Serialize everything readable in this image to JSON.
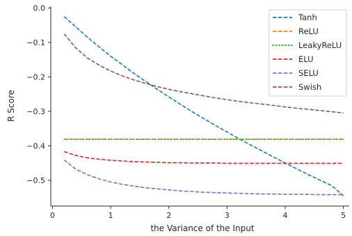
{
  "chart_data": {
    "type": "line",
    "xlabel": "the Variance of the Input",
    "ylabel": "R Score",
    "xlim": [
      -0.03,
      5.1
    ],
    "ylim": [
      -0.575,
      0.005
    ],
    "xticks": [
      0,
      1,
      2,
      3,
      4,
      5
    ],
    "xtick_labels": [
      "0",
      "1",
      "2",
      "3",
      "4",
      "5"
    ],
    "yticks": [
      0.0,
      -0.1,
      -0.2,
      -0.3,
      -0.4,
      -0.5
    ],
    "ytick_labels": [
      "0.0",
      "−0.1",
      "−0.2",
      "−0.3",
      "−0.4",
      "−0.5"
    ],
    "grid": false,
    "legend_position": "top-right",
    "x": [
      0.2,
      0.4,
      0.6,
      0.8,
      1.0,
      1.2,
      1.4,
      1.6,
      1.8,
      2.0,
      2.2,
      2.4,
      2.6,
      2.8,
      3.0,
      3.2,
      3.4,
      3.6,
      3.8,
      4.0,
      4.2,
      4.4,
      4.6,
      4.8,
      5.0
    ],
    "series": [
      {
        "name": "Tanh",
        "color": "#1f77b4",
        "dash": "dashed",
        "values": [
          -0.025,
          -0.055,
          -0.085,
          -0.113,
          -0.14,
          -0.165,
          -0.19,
          -0.213,
          -0.236,
          -0.258,
          -0.28,
          -0.301,
          -0.321,
          -0.341,
          -0.36,
          -0.379,
          -0.397,
          -0.415,
          -0.433,
          -0.45,
          -0.467,
          -0.484,
          -0.5,
          -0.516,
          -0.545
        ]
      },
      {
        "name": "ReLU",
        "color": "#ff7f0e",
        "dash": "dashed",
        "values": [
          -0.381,
          -0.381,
          -0.381,
          -0.381,
          -0.381,
          -0.381,
          -0.381,
          -0.381,
          -0.381,
          -0.381,
          -0.381,
          -0.381,
          -0.381,
          -0.381,
          -0.381,
          -0.381,
          -0.381,
          -0.381,
          -0.381,
          -0.381,
          -0.381,
          -0.381,
          -0.381,
          -0.381,
          -0.381
        ]
      },
      {
        "name": "LeakyReLU",
        "color": "#2ca02c",
        "dash": "dotted",
        "values": [
          -0.381,
          -0.381,
          -0.381,
          -0.381,
          -0.381,
          -0.381,
          -0.381,
          -0.381,
          -0.381,
          -0.381,
          -0.381,
          -0.381,
          -0.381,
          -0.381,
          -0.381,
          -0.381,
          -0.381,
          -0.381,
          -0.381,
          -0.381,
          -0.381,
          -0.381,
          -0.381,
          -0.381,
          -0.381
        ]
      },
      {
        "name": "ELU",
        "color": "#d62728",
        "dash": "dashed",
        "values": [
          -0.417,
          -0.428,
          -0.435,
          -0.439,
          -0.442,
          -0.444,
          -0.446,
          -0.447,
          -0.448,
          -0.449,
          -0.449,
          -0.45,
          -0.45,
          -0.45,
          -0.451,
          -0.451,
          -0.451,
          -0.451,
          -0.451,
          -0.451,
          -0.451,
          -0.451,
          -0.451,
          -0.451,
          -0.451
        ]
      },
      {
        "name": "SELU",
        "color": "#9467bd",
        "dash": "dashed",
        "values": [
          -0.441,
          -0.468,
          -0.484,
          -0.496,
          -0.505,
          -0.512,
          -0.517,
          -0.522,
          -0.525,
          -0.528,
          -0.531,
          -0.533,
          -0.535,
          -0.536,
          -0.537,
          -0.538,
          -0.539,
          -0.54,
          -0.54,
          -0.541,
          -0.541,
          -0.541,
          -0.542,
          -0.542,
          -0.542
        ]
      },
      {
        "name": "Swish",
        "color": "#8c564b",
        "dash": "dashed",
        "values": [
          -0.075,
          -0.116,
          -0.145,
          -0.166,
          -0.183,
          -0.197,
          -0.209,
          -0.219,
          -0.228,
          -0.236,
          -0.243,
          -0.249,
          -0.255,
          -0.261,
          -0.266,
          -0.271,
          -0.275,
          -0.279,
          -0.283,
          -0.287,
          -0.291,
          -0.294,
          -0.298,
          -0.301,
          -0.305
        ]
      }
    ]
  }
}
